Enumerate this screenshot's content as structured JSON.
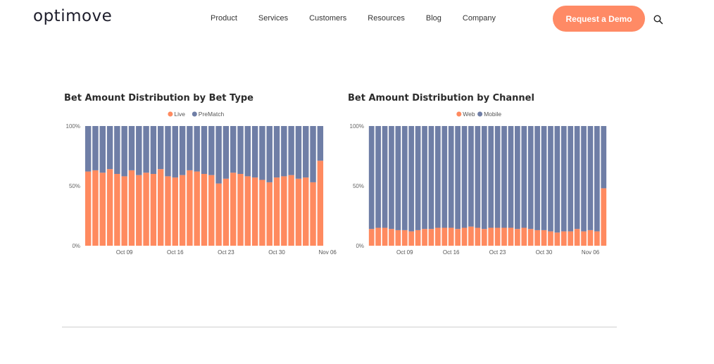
{
  "header": {
    "logo": "optimove",
    "nav": [
      "Product",
      "Services",
      "Customers",
      "Resources",
      "Blog",
      "Company"
    ],
    "cta_label": "Request a Demo",
    "search_icon": "search-icon"
  },
  "colors": {
    "accent": "#ff8a65",
    "series_orange": "#ff8a5f",
    "series_blue": "#6f7ea6"
  },
  "chart_data": [
    {
      "type": "bar",
      "stacked": true,
      "title": "Bet Amount Distribution by Bet Type",
      "legend_position": "top-center",
      "ylim": [
        0,
        100
      ],
      "yticks": [
        "0%",
        "50%",
        "100%"
      ],
      "xtick_labels": [
        "Oct 09",
        "Oct 16",
        "Oct 23",
        "Oct 30",
        "Nov 06"
      ],
      "xtick_positions": [
        5,
        12,
        19,
        26,
        33
      ],
      "series": [
        {
          "name": "Live",
          "color": "#ff8a5f",
          "values": [
            62,
            63,
            61,
            64,
            60,
            58,
            63,
            59,
            61,
            60,
            64,
            58,
            57,
            59,
            63,
            62,
            60,
            59,
            52,
            56,
            61,
            60,
            58,
            57,
            55,
            53,
            57,
            58,
            59,
            56,
            57,
            53,
            71
          ]
        },
        {
          "name": "PreMatch",
          "color": "#6f7ea6",
          "values": [
            38,
            37,
            39,
            36,
            40,
            42,
            37,
            41,
            39,
            40,
            36,
            42,
            43,
            41,
            37,
            38,
            40,
            41,
            48,
            44,
            39,
            40,
            42,
            43,
            45,
            47,
            43,
            42,
            41,
            44,
            43,
            47,
            29
          ]
        }
      ]
    },
    {
      "type": "bar",
      "stacked": true,
      "title": "Bet Amount Distribution by Channel",
      "legend_position": "top-center",
      "ylim": [
        0,
        100
      ],
      "yticks": [
        "0%",
        "50%",
        "100%"
      ],
      "xtick_labels": [
        "Oct 09",
        "Oct 16",
        "Oct 23",
        "Oct 30",
        "Nov 06"
      ],
      "xtick_positions": [
        5,
        12,
        19,
        26,
        33
      ],
      "series": [
        {
          "name": "Web",
          "color": "#ff8a5f",
          "values": [
            14,
            15,
            15,
            14,
            13,
            13,
            12,
            13,
            14,
            14,
            15,
            15,
            15,
            14,
            15,
            16,
            15,
            14,
            15,
            15,
            15,
            15,
            14,
            15,
            14,
            13,
            13,
            12,
            11,
            12,
            12,
            14,
            12,
            13,
            12,
            48
          ]
        },
        {
          "name": "Mobile",
          "color": "#6f7ea6",
          "values": [
            86,
            85,
            85,
            86,
            87,
            87,
            88,
            87,
            86,
            86,
            85,
            85,
            85,
            86,
            85,
            84,
            85,
            86,
            85,
            85,
            85,
            85,
            86,
            85,
            86,
            87,
            87,
            88,
            89,
            88,
            88,
            86,
            88,
            87,
            88,
            52
          ]
        }
      ]
    }
  ]
}
